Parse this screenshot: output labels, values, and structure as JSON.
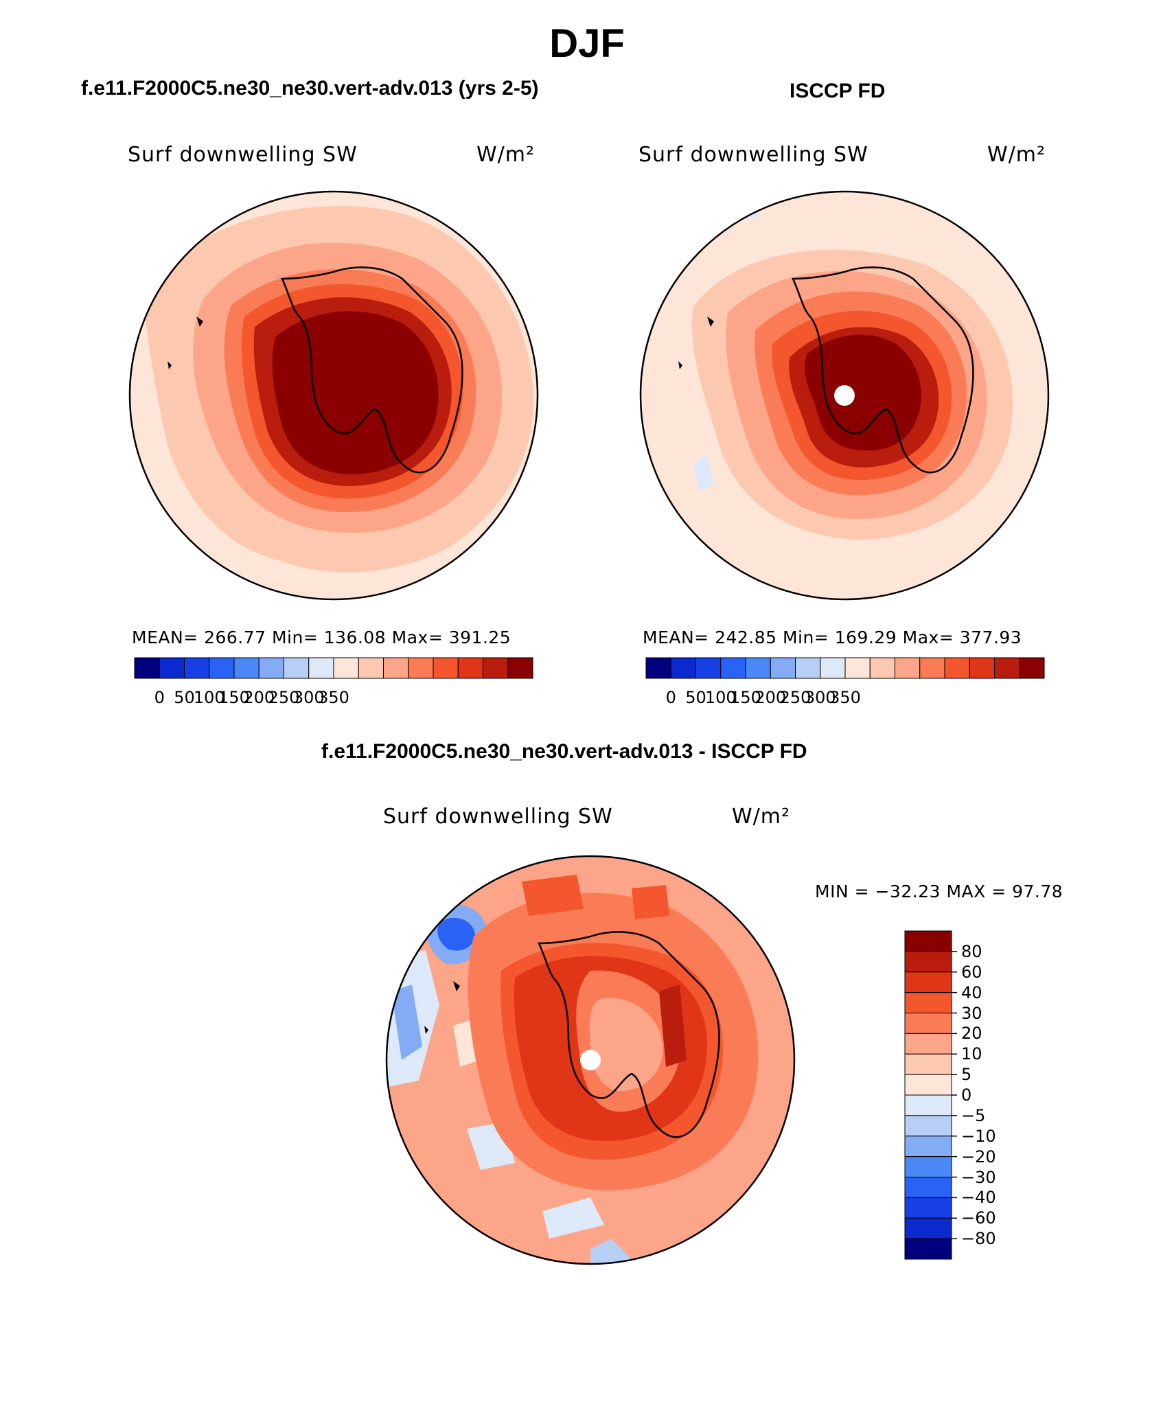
{
  "page": {
    "season": "DJF",
    "model_case_title": "f.e11.F2000C5.ne30_ne30.vert-adv.013 (yrs 2-5)",
    "obs_title": "ISCCP FD",
    "diff_title": "f.e11.F2000C5.ne30_ne30.vert-adv.013 - ISCCP FD"
  },
  "panels": {
    "model": {
      "field_label": "Surf downwelling SW",
      "units": "W/m²",
      "stats": "MEAN= 266.77   Min= 136.08   Max= 391.25",
      "mean": 266.77,
      "min": 136.08,
      "max": 391.25
    },
    "obs": {
      "field_label": "Surf downwelling SW",
      "units": "W/m²",
      "stats": "MEAN= 242.85   Min= 169.29   Max= 377.93",
      "mean": 242.85,
      "min": 169.29,
      "max": 377.93
    },
    "diff": {
      "field_label": "Surf downwelling SW",
      "units": "W/m²",
      "stats": "MIN = −32.23 MAX =  97.78",
      "min": -32.23,
      "max": 97.78
    }
  },
  "colorbars": {
    "abs": {
      "colors": [
        "#00007f",
        "#0a2acd",
        "#1640e6",
        "#2962f4",
        "#4a87f7",
        "#84acf4",
        "#b8cff5",
        "#dde9f9",
        "#fde6d8",
        "#fcc8b0",
        "#fca588",
        "#fa7c56",
        "#f4562d",
        "#e03516",
        "#b81d0d",
        "#8a0000"
      ],
      "labels": [
        "0",
        "50",
        "100",
        "150",
        "200",
        "250",
        "300",
        "350"
      ]
    },
    "diff": {
      "colors": [
        "#00007f",
        "#0a2acd",
        "#1640e6",
        "#2962f4",
        "#4a87f7",
        "#84acf4",
        "#b8cff5",
        "#dde9f9",
        "#fde6d8",
        "#fcc8b0",
        "#fca588",
        "#fa7c56",
        "#f4562d",
        "#e03516",
        "#b81d0d",
        "#8a0000"
      ],
      "labels": [
        "80",
        "60",
        "40",
        "30",
        "20",
        "10",
        "5",
        "0",
        "−5",
        "−10",
        "−20",
        "−30",
        "−40",
        "−60",
        "−80"
      ]
    }
  },
  "map_colors": {
    "ocean_pale": "#fde6d8",
    "ocean_light": "#fcc8b0",
    "ocean_mid": "#fca588",
    "coast_orange": "#fa7c56",
    "coast_red": "#f4562d",
    "ice_edge": "#e03516",
    "ice_dark": "#b81d0d",
    "ice_core": "#8a0000",
    "neg_light": "#dde9f9",
    "neg_mid": "#84acf4",
    "neg_deep": "#2962f4",
    "missing": "#ffffff"
  }
}
